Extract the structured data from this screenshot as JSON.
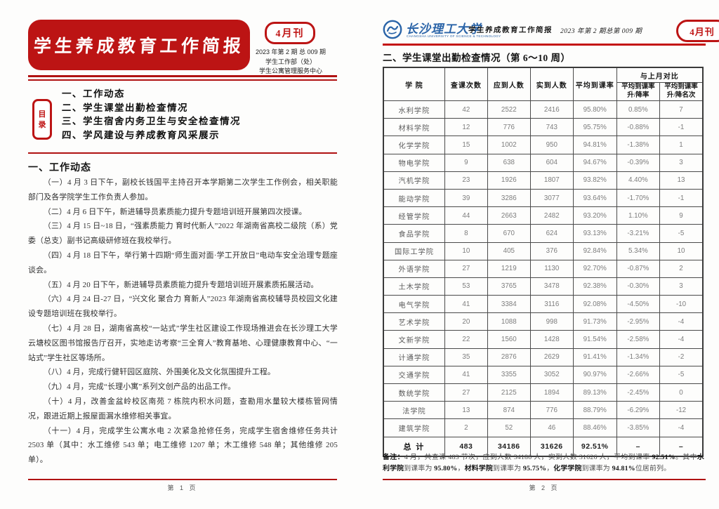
{
  "colors": {
    "brand_red": "#bc1414",
    "rule_red": "#b01212",
    "logo_blue": "#2a64a8",
    "table_text_gray": "#7d7d7d"
  },
  "page1": {
    "masthead_title": "学生养成教育工作简报",
    "badge": "4月刊",
    "issue_line1": "2023 年第 2 期  总 009 期",
    "issue_line2": "学生工作部（处）",
    "issue_line3": "学生公寓管理服务中心",
    "toc_char1": "目",
    "toc_char2": "录",
    "toc_items": [
      "一、工作动态",
      "二、学生课堂出勤检查情况",
      "三、学生宿舍内务卫生与安全检查情况",
      "四、学风建设与养成教育风采展示"
    ],
    "section_title": "一、工作动态",
    "paragraphs": [
      "（一）4 月 3 日下午，副校长钱国平主持召开本学期第二次学生工作例会，相关职能部门及各学院学生工作负责人参加。",
      "（二）4 月 6 日下午，新进辅导员素质能力提升专题培训班开展第四次授课。",
      "（三）4 月 15 日~18 日，“强素质能力 育时代新人”2022 年湖南省高校二级院（系）党委（总支）副书记高级研修班在我校举行。",
      "（四）4 月 18 日下午，举行第十四期“师生面对面·学工开放日”电动车安全治理专题座谈会。",
      "（五）4 月 20 日下午，新进辅导员素质能力提升专题培训班开展素质拓展活动。",
      "（六）4 月 24 日-27 日，“兴文化 聚合力 育新人”2023 年湖南省高校辅导员校园文化建设专题培训班在我校举行。",
      "（七）4 月 28 日，湖南省高校“一站式”学生社区建设工作现场推进会在长沙理工大学云塘校区图书馆报告厅召开，实地走访考察“三全育人”教育基地、心理健康教育中心、“一站式”学生社区等场所。",
      "（八）4 月，完成行健轩园区庭院、外围美化及文化氛围提升工程。",
      "（九）4 月，完成“长理小寓”系列文创产品的出品工作。",
      "（十）4 月，改善金盆岭校区南苑 7 栋院内积水问题，查勘用水量较大楼栋管网情况，跟进近期上报屋面漏水维修相关事宜。",
      "（十一）4 月，完成学生公寓水电 2 次紧急抢修任务，完成学生宿舍维修任务共计 2503 单（其中：水工维修 543 单；电工维修 1207 单；木工维修 548 单；其他维修 205 单）。"
    ],
    "page_number": "第 1 页"
  },
  "page2": {
    "logo_name_cn": "长沙理工大学",
    "logo_name_en": "CHANGSHA UNIVERSITY OF SCIENCE & TECHNOLOGY",
    "masthead_sub": "学生养成教育工作简报",
    "issue": "2023 年第 2 期总第 009 期",
    "badge": "4月刊",
    "section_title": "二、学生课堂出勤检查情况（第 6～10 周）",
    "table": {
      "col_headers": [
        "学  院",
        "查课次数",
        "应到人数",
        "实到人数",
        "平均到课率"
      ],
      "compare_header": "与上月对比",
      "compare_sub1": {
        "line1": "平均到课率",
        "line2": "升/降率"
      },
      "compare_sub2": {
        "line1": "平均到课率",
        "line2": "升/降名次"
      },
      "rows": [
        [
          "水利学院",
          "42",
          "2522",
          "2416",
          "95.80%",
          "0.85%",
          "7"
        ],
        [
          "材料学院",
          "12",
          "776",
          "743",
          "95.75%",
          "-0.88%",
          "-1"
        ],
        [
          "化学学院",
          "15",
          "1002",
          "950",
          "94.81%",
          "-1.38%",
          "1"
        ],
        [
          "物电学院",
          "9",
          "638",
          "604",
          "94.67%",
          "-0.39%",
          "3"
        ],
        [
          "汽机学院",
          "23",
          "1926",
          "1807",
          "93.82%",
          "4.40%",
          "13"
        ],
        [
          "能动学院",
          "39",
          "3286",
          "3077",
          "93.64%",
          "-1.70%",
          "-1"
        ],
        [
          "经管学院",
          "44",
          "2663",
          "2482",
          "93.20%",
          "1.10%",
          "9"
        ],
        [
          "食品学院",
          "8",
          "670",
          "624",
          "93.13%",
          "-3.21%",
          "-5"
        ],
        [
          "国际工学院",
          "10",
          "405",
          "376",
          "92.84%",
          "5.34%",
          "10"
        ],
        [
          "外语学院",
          "27",
          "1219",
          "1130",
          "92.70%",
          "-0.87%",
          "2"
        ],
        [
          "土木学院",
          "53",
          "3765",
          "3478",
          "92.38%",
          "-0.30%",
          "3"
        ],
        [
          "电气学院",
          "41",
          "3384",
          "3116",
          "92.08%",
          "-4.50%",
          "-10"
        ],
        [
          "艺术学院",
          "20",
          "1088",
          "998",
          "91.73%",
          "-2.95%",
          "-4"
        ],
        [
          "文新学院",
          "22",
          "1560",
          "1428",
          "91.54%",
          "-2.58%",
          "-4"
        ],
        [
          "计通学院",
          "35",
          "2876",
          "2629",
          "91.41%",
          "-1.34%",
          "-2"
        ],
        [
          "交通学院",
          "41",
          "3355",
          "3052",
          "90.97%",
          "-2.66%",
          "-5"
        ],
        [
          "数统学院",
          "27",
          "2125",
          "1894",
          "89.13%",
          "-2.45%",
          "0"
        ],
        [
          "法学院",
          "13",
          "874",
          "776",
          "88.79%",
          "-6.29%",
          "-12"
        ],
        [
          "建筑学院",
          "2",
          "52",
          "46",
          "88.46%",
          "-3.85%",
          "-4"
        ]
      ],
      "total_row": [
        "总  计",
        "483",
        "34186",
        "31626",
        "92.51%",
        "–",
        "–"
      ]
    },
    "note_segments": [
      {
        "text": "备注：",
        "bold": true
      },
      {
        "text": "4 月，共查课 483 节次，应到人数 34186 人，实到人数 31626 人，平均到课率 ",
        "bold": false
      },
      {
        "text": "92.51%",
        "bold": true
      },
      {
        "text": "。其中",
        "bold": false
      },
      {
        "text": "水利学院",
        "bold": true
      },
      {
        "text": "到课率为 ",
        "bold": false
      },
      {
        "text": "95.80%",
        "bold": true
      },
      {
        "text": "，",
        "bold": false
      },
      {
        "text": "材料学院",
        "bold": true
      },
      {
        "text": "到课率为 ",
        "bold": false
      },
      {
        "text": "95.75%",
        "bold": true
      },
      {
        "text": "，",
        "bold": false
      },
      {
        "text": "化学学院",
        "bold": true
      },
      {
        "text": "到课率为 ",
        "bold": false
      },
      {
        "text": "94.81%",
        "bold": true
      },
      {
        "text": "位居前列。",
        "bold": false
      }
    ],
    "page_number": "第 2 页"
  }
}
